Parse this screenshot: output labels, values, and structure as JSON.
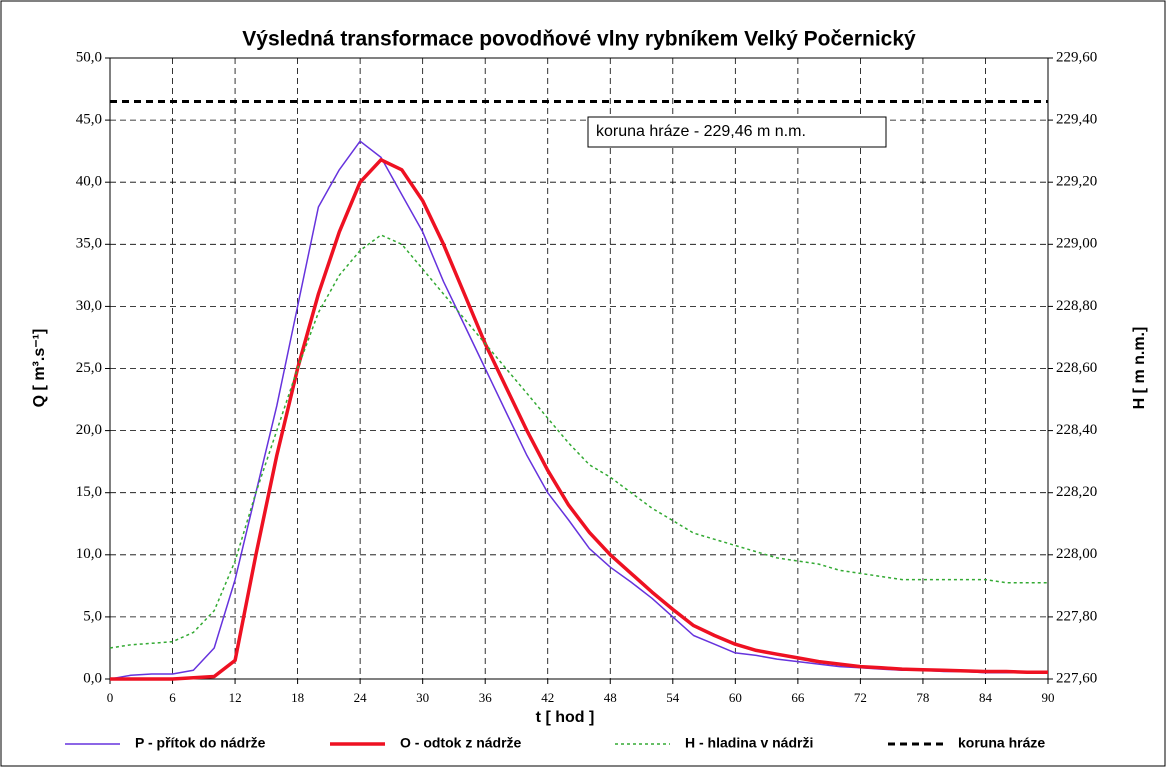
{
  "chart_data": {
    "type": "line",
    "title": "Výsledná transformace povodňové vlny rybníkem Velký Počernický",
    "x_label": "t  [ hod ]",
    "y_label": "Q  [ m³.s⁻¹]",
    "y2_label": "H  [ m n.m.]",
    "annotation": "koruna hráze - 229,46 m n.m.",
    "grid": true,
    "legend": "bottom",
    "xlim": [
      0,
      90
    ],
    "xticks": [
      0,
      6,
      12,
      18,
      24,
      30,
      36,
      42,
      48,
      54,
      60,
      66,
      72,
      78,
      84,
      90
    ],
    "ylim": [
      0,
      50
    ],
    "yticks": [
      {
        "value": 0,
        "label": "0,0"
      },
      {
        "value": 5,
        "label": "5,0"
      },
      {
        "value": 10,
        "label": "10,0"
      },
      {
        "value": 15,
        "label": "15,0"
      },
      {
        "value": 20,
        "label": "20,0"
      },
      {
        "value": 25,
        "label": "25,0"
      },
      {
        "value": 30,
        "label": "30,0"
      },
      {
        "value": 35,
        "label": "35,0"
      },
      {
        "value": 40,
        "label": "40,0"
      },
      {
        "value": 45,
        "label": "45,0"
      },
      {
        "value": 50,
        "label": "50,0"
      }
    ],
    "y2lim": [
      227.6,
      229.6
    ],
    "y2ticks": [
      {
        "value": 227.6,
        "label": "227,60"
      },
      {
        "value": 227.8,
        "label": "227,80"
      },
      {
        "value": 228.0,
        "label": "228,00"
      },
      {
        "value": 228.2,
        "label": "228,20"
      },
      {
        "value": 228.4,
        "label": "228,40"
      },
      {
        "value": 228.6,
        "label": "228,60"
      },
      {
        "value": 228.8,
        "label": "228,80"
      },
      {
        "value": 229.0,
        "label": "229,00"
      },
      {
        "value": 229.2,
        "label": "229,20"
      },
      {
        "value": 229.4,
        "label": "229,40"
      },
      {
        "value": 229.6,
        "label": "229,60"
      }
    ],
    "x": [
      0,
      2,
      4,
      6,
      8,
      10,
      12,
      14,
      16,
      18,
      20,
      22,
      24,
      26,
      28,
      30,
      32,
      34,
      36,
      38,
      40,
      42,
      44,
      46,
      48,
      50,
      52,
      54,
      56,
      58,
      60,
      62,
      64,
      66,
      68,
      70,
      72,
      74,
      76,
      78,
      80,
      82,
      84,
      86,
      88,
      90
    ],
    "series": [
      {
        "name": "P - přítok do nádrže",
        "color": "#6633dd",
        "width": 1.5,
        "dash": "none",
        "values": [
          0,
          0.3,
          0.4,
          0.4,
          0.7,
          2.5,
          8,
          15,
          22,
          30,
          38,
          41,
          43.3,
          42,
          39,
          36,
          32,
          28.5,
          25,
          21.5,
          18,
          15,
          12.8,
          10.5,
          9,
          7.8,
          6.5,
          5,
          3.5,
          2.8,
          2.1,
          1.9,
          1.6,
          1.4,
          1.2,
          1,
          0.9,
          0.8,
          0.7,
          0.7,
          0.6,
          0.6,
          0.5,
          0.5,
          0.5,
          0.5
        ]
      },
      {
        "name": "O - odtok z nádrže",
        "color": "#ee1122",
        "width": 3.5,
        "dash": "none",
        "values": [
          0,
          0,
          0,
          0,
          0.1,
          0.2,
          1.5,
          10,
          18,
          25,
          31,
          36,
          40,
          41.8,
          41,
          38.5,
          35,
          31,
          27,
          23.5,
          20,
          16.8,
          14,
          11.8,
          10,
          8.5,
          7,
          5.6,
          4.3,
          3.5,
          2.8,
          2.3,
          2,
          1.7,
          1.4,
          1.2,
          1,
          0.9,
          0.8,
          0.75,
          0.7,
          0.65,
          0.6,
          0.6,
          0.55,
          0.55
        ]
      },
      {
        "name": "H - hladina v nádrži",
        "color": "#33aa33",
        "width": 1.5,
        "dash": "3 3",
        "axis": "y2",
        "values": [
          227.7,
          227.71,
          227.715,
          227.72,
          227.75,
          227.82,
          227.98,
          228.2,
          228.4,
          228.6,
          228.78,
          228.9,
          228.98,
          229.03,
          229.0,
          228.92,
          228.84,
          228.76,
          228.68,
          228.6,
          228.52,
          228.44,
          228.36,
          228.29,
          228.25,
          228.2,
          228.15,
          228.11,
          228.07,
          228.05,
          228.03,
          228.01,
          227.99,
          227.98,
          227.97,
          227.95,
          227.94,
          227.93,
          227.92,
          227.92,
          227.92,
          227.92,
          227.92,
          227.91,
          227.91,
          227.91
        ]
      },
      {
        "name": "koruna hráze",
        "color": "#000000",
        "width": 3,
        "dash": "7 5",
        "axis": "y2",
        "x": [
          0,
          90
        ],
        "values": [
          229.46,
          229.46
        ]
      }
    ]
  }
}
